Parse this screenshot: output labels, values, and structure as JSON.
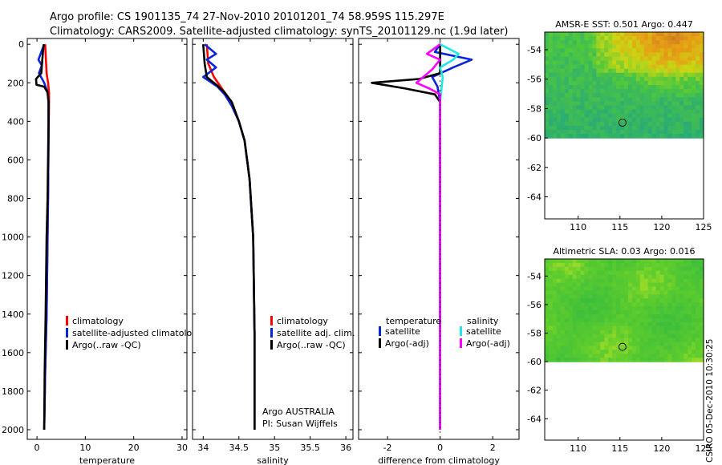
{
  "title": {
    "line1": "Argo profile: CS 1901135_74 27-Nov-2010 20101201_74 58.959S 115.297E",
    "line2": "Climatology: CARS2009. Satellite-adjusted climatology: synTS_20101129.nc (1.9d later)"
  },
  "credit": "CSIRO 05-Dec-2010 10:30:25",
  "colors": {
    "red": "#ff0000",
    "blue": "#0a24d8",
    "black": "#000000",
    "cyan": "#22e6e6",
    "magenta": "#ff00ff"
  },
  "chart_data": [
    {
      "type": "line",
      "id": "temperature",
      "xlabel": "temperature",
      "ylabel": "",
      "xlim": [
        -2,
        31
      ],
      "ylim": [
        2050,
        -30
      ],
      "xticks": [
        0,
        10,
        20,
        30
      ],
      "xtick_labels": [
        "0",
        "10",
        "20",
        "30"
      ],
      "yticks": [
        0,
        200,
        400,
        600,
        800,
        1000,
        1200,
        1400,
        1600,
        1800,
        2000
      ],
      "ytick_labels": [
        "0",
        "200",
        "400",
        "600",
        "800",
        "1000",
        "1200",
        "1400",
        "1600",
        "1800",
        "2000"
      ],
      "legend": [
        "climatology",
        "satellite-adjusted climatology",
        "Argo(..raw -QC)"
      ],
      "series": [
        {
          "name": "climatology",
          "color": "red",
          "points": [
            [
              1.7,
              0
            ],
            [
              1.8,
              50
            ],
            [
              2.0,
              150
            ],
            [
              2.3,
              200
            ],
            [
              2.5,
              250
            ],
            [
              2.5,
              300
            ],
            [
              2.4,
              500
            ],
            [
              2.3,
              800
            ],
            [
              2.2,
              1000
            ],
            [
              2.0,
              1400
            ],
            [
              1.7,
              1700
            ],
            [
              1.5,
              2000
            ]
          ]
        },
        {
          "name": "satellite-adjusted climatology",
          "color": "blue",
          "points": [
            [
              1.5,
              0
            ],
            [
              0.3,
              80
            ],
            [
              1.0,
              110
            ],
            [
              0.4,
              150
            ],
            [
              1.5,
              200
            ],
            [
              2.2,
              250
            ],
            [
              2.4,
              300
            ],
            [
              2.4,
              500
            ],
            [
              2.3,
              800
            ],
            [
              2.2,
              1000
            ],
            [
              2.0,
              1400
            ],
            [
              1.7,
              1700
            ],
            [
              1.5,
              2000
            ]
          ]
        },
        {
          "name": "Argo(..raw -QC)",
          "color": "black",
          "points": [
            [
              1.4,
              0
            ],
            [
              1.2,
              50
            ],
            [
              0.9,
              150
            ],
            [
              -0.2,
              180
            ],
            [
              -0.1,
              210
            ],
            [
              1.5,
              220
            ],
            [
              2.2,
              250
            ],
            [
              2.4,
              300
            ],
            [
              2.4,
              400
            ],
            [
              2.3,
              600
            ],
            [
              2.2,
              800
            ],
            [
              2.0,
              1000
            ],
            [
              1.8,
              1400
            ],
            [
              1.6,
              1700
            ],
            [
              1.5,
              2000
            ]
          ]
        }
      ]
    },
    {
      "type": "line",
      "id": "salinity",
      "xlabel": "salinity",
      "ylabel": "",
      "xlim": [
        33.85,
        36.1
      ],
      "ylim": [
        2050,
        -30
      ],
      "xticks": [
        34,
        34.5,
        35,
        35.5,
        36
      ],
      "xtick_labels": [
        "34",
        "34.5",
        "35",
        "35.5",
        "36"
      ],
      "legend": [
        "climatology",
        "satellite adj. clim.",
        "Argo(..raw -QC)"
      ],
      "annotation": [
        "Argo AUSTRALIA",
        "PI: Susan Wijffels"
      ],
      "series": [
        {
          "name": "climatology",
          "color": "red",
          "points": [
            [
              34.05,
              0
            ],
            [
              34.07,
              100
            ],
            [
              34.15,
              170
            ],
            [
              34.3,
              250
            ],
            [
              34.4,
              300
            ],
            [
              34.5,
              400
            ],
            [
              34.58,
              500
            ],
            [
              34.65,
              700
            ],
            [
              34.7,
              1000
            ],
            [
              34.72,
              1500
            ],
            [
              34.72,
              2000
            ]
          ]
        },
        {
          "name": "satellite adj. clim.",
          "color": "blue",
          "points": [
            [
              34.02,
              0
            ],
            [
              34.18,
              50
            ],
            [
              34.05,
              80
            ],
            [
              34.18,
              120
            ],
            [
              34.0,
              170
            ],
            [
              34.2,
              220
            ],
            [
              34.3,
              260
            ],
            [
              34.4,
              320
            ],
            [
              34.5,
              400
            ],
            [
              34.58,
              500
            ],
            [
              34.65,
              700
            ],
            [
              34.7,
              1000
            ],
            [
              34.72,
              1500
            ],
            [
              34.72,
              2000
            ]
          ]
        },
        {
          "name": "Argo(..raw -QC)",
          "color": "black",
          "points": [
            [
              34.0,
              0
            ],
            [
              34.02,
              100
            ],
            [
              34.05,
              170
            ],
            [
              34.2,
              215
            ],
            [
              34.3,
              250
            ],
            [
              34.4,
              300
            ],
            [
              34.5,
              400
            ],
            [
              34.58,
              500
            ],
            [
              34.65,
              700
            ],
            [
              34.7,
              1000
            ],
            [
              34.72,
              1500
            ],
            [
              34.72,
              2000
            ]
          ]
        }
      ]
    },
    {
      "type": "line",
      "id": "difference",
      "xlabel": "difference from climatology",
      "ylabel": "",
      "xlim": [
        -3.1,
        3.0
      ],
      "ylim": [
        2050,
        -30
      ],
      "xticks": [
        -2,
        0,
        2
      ],
      "xtick_labels": [
        "-2",
        "0",
        "2"
      ],
      "legend_headers": [
        "temperature",
        "salinity"
      ],
      "legend": [
        "satellite",
        "Argo(-adj)",
        "satellite",
        "Argo(-adj)"
      ],
      "series": [
        {
          "name": "temperature satellite",
          "color": "blue",
          "points": [
            [
              0,
              0
            ],
            [
              -0.2,
              40
            ],
            [
              1.2,
              80
            ],
            [
              0.5,
              120
            ],
            [
              -0.3,
              170
            ],
            [
              -0.1,
              220
            ],
            [
              0,
              300
            ],
            [
              0,
              500
            ],
            [
              0,
              800
            ],
            [
              0,
              1200
            ],
            [
              0,
              2000
            ]
          ]
        },
        {
          "name": "temperature Argo(-adj)",
          "color": "black",
          "points": [
            [
              0,
              0
            ],
            [
              0,
              150
            ],
            [
              -0.8,
              180
            ],
            [
              -2.6,
              200
            ],
            [
              -1.3,
              230
            ],
            [
              -0.2,
              260
            ],
            [
              0,
              300
            ],
            [
              0,
              2000
            ]
          ]
        },
        {
          "name": "salinity satellite",
          "color": "cyan",
          "points": [
            [
              0,
              0
            ],
            [
              0.7,
              50
            ],
            [
              0.5,
              80
            ],
            [
              0,
              120
            ],
            [
              0.1,
              170
            ],
            [
              0,
              300
            ],
            [
              0,
              600
            ],
            [
              0,
              1000
            ],
            [
              0,
              2000
            ]
          ]
        },
        {
          "name": "salinity Argo(-adj)",
          "color": "magenta",
          "points": [
            [
              0,
              0
            ],
            [
              -0.5,
              50
            ],
            [
              0,
              80
            ],
            [
              -0.3,
              130
            ],
            [
              -0.9,
              200
            ],
            [
              -0.4,
              230
            ],
            [
              0,
              260
            ],
            [
              0,
              300
            ],
            [
              0,
              2000
            ]
          ]
        }
      ]
    },
    {
      "type": "heatmap",
      "id": "sst-map",
      "title": "AMSR-E SST: 0.501 Argo: 0.447",
      "xlim": [
        106,
        125
      ],
      "ylim": [
        -65.5,
        -52.8
      ],
      "xticks": [
        110,
        115,
        120,
        125
      ],
      "xtick_labels": [
        "110",
        "115",
        "120",
        "125"
      ],
      "yticks": [
        -54,
        -56,
        -58,
        -60,
        -62,
        -64
      ],
      "ytick_labels": [
        "-54",
        "-56",
        "-58",
        "-60",
        "-62",
        "-64"
      ],
      "data_lat_range": [
        -60,
        -52.8
      ],
      "marker": [
        115.3,
        -58.96
      ]
    },
    {
      "type": "heatmap",
      "id": "sla-map",
      "title": "Altimetric SLA: 0.03 Argo: 0.016",
      "xlim": [
        106,
        125
      ],
      "ylim": [
        -65.5,
        -52.8
      ],
      "xticks": [
        110,
        115,
        120,
        125
      ],
      "xtick_labels": [
        "110",
        "115",
        "120",
        "125"
      ],
      "yticks": [
        -54,
        -56,
        -58,
        -60,
        -62,
        -64
      ],
      "ytick_labels": [
        "-54",
        "-56",
        "-58",
        "-60",
        "-62",
        "-64"
      ],
      "data_lat_range": [
        -60,
        -52.8
      ],
      "marker": [
        115.3,
        -58.96
      ]
    }
  ]
}
